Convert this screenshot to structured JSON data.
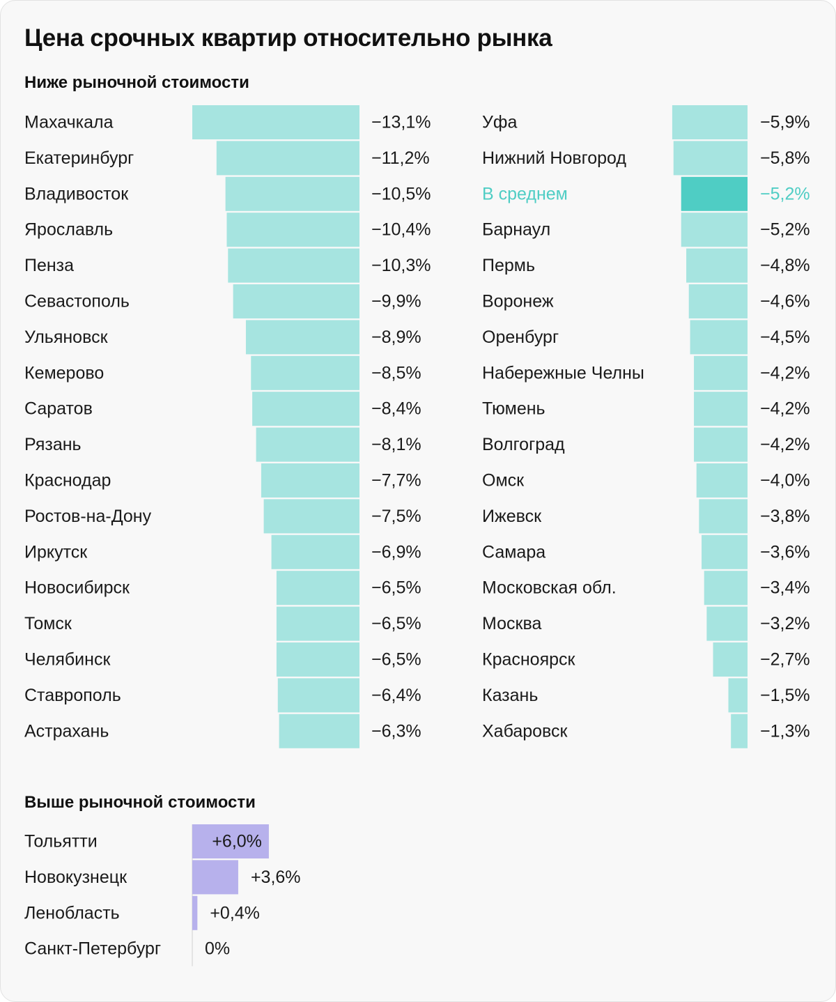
{
  "title": "Цена срочных квартир относительно рынка",
  "sections": {
    "below": "Ниже рыночной стоимости",
    "above": "Выше рыночной стоимости"
  },
  "colors": {
    "below_bar": "#a6e4e0",
    "average_bar": "#4fcdc4",
    "average_text": "#4fcdc4",
    "above_bar": "#b7b1ec",
    "zero_line": "#d0d0d0",
    "text": "#1a1a1a"
  },
  "chart_data": [
    {
      "type": "bar",
      "orientation": "horizontal",
      "unit": "%",
      "categories": [
        "Махачкала",
        "Екатеринбург",
        "Владивосток",
        "Ярославль",
        "Пенза",
        "Севастополь",
        "Ульяновск",
        "Кемерово",
        "Саратов",
        "Рязань",
        "Краснодар",
        "Ростов-на-Дону",
        "Иркутск",
        "Новосибирск",
        "Томск",
        "Челябинск",
        "Ставрополь",
        "Астрахань"
      ],
      "values": [
        -13.1,
        -11.2,
        -10.5,
        -10.4,
        -10.3,
        -9.9,
        -8.9,
        -8.5,
        -8.4,
        -8.1,
        -7.7,
        -7.5,
        -6.9,
        -6.5,
        -6.5,
        -6.5,
        -6.4,
        -6.3
      ],
      "labels": [
        "−13,1%",
        "−11,2%",
        "−10,5%",
        "−10,4%",
        "−10,3%",
        "−9,9%",
        "−8,9%",
        "−8,5%",
        "−8,4%",
        "−8,1%",
        "−7,7%",
        "−7,5%",
        "−6,9%",
        "−6,5%",
        "−6,5%",
        "−6,5%",
        "−6,4%",
        "−6,3%"
      ]
    },
    {
      "type": "bar",
      "orientation": "horizontal",
      "unit": "%",
      "categories": [
        "Уфа",
        "Нижний Новгород",
        "В среднем",
        "Барнаул",
        "Пермь",
        "Воронеж",
        "Оренбург",
        "Набережные Челны",
        "Тюмень",
        "Волгоград",
        "Омск",
        "Ижевск",
        "Самара",
        "Московская обл.",
        "Москва",
        "Красноярск",
        "Казань",
        "Хабаровск"
      ],
      "values": [
        -5.9,
        -5.8,
        -5.2,
        -5.2,
        -4.8,
        -4.6,
        -4.5,
        -4.2,
        -4.2,
        -4.2,
        -4.0,
        -3.8,
        -3.6,
        -3.4,
        -3.2,
        -2.7,
        -1.5,
        -1.3
      ],
      "labels": [
        "−5,9%",
        "−5,8%",
        "−5,2%",
        "−5,2%",
        "−4,8%",
        "−4,6%",
        "−4,5%",
        "−4,2%",
        "−4,2%",
        "−4,2%",
        "−4,0%",
        "−3,8%",
        "−3,6%",
        "−3,4%",
        "−3,2%",
        "−2,7%",
        "−1,5%",
        "−1,3%"
      ],
      "highlight_category": "В среднем"
    },
    {
      "type": "bar",
      "orientation": "horizontal",
      "unit": "%",
      "categories": [
        "Тольятти",
        "Новокузнецк",
        "Ленобласть",
        "Санкт-Петербург"
      ],
      "values": [
        6.0,
        3.6,
        0.4,
        0
      ],
      "labels": [
        "+6,0%",
        "+3,6%",
        "+0,4%",
        "0%"
      ]
    }
  ]
}
